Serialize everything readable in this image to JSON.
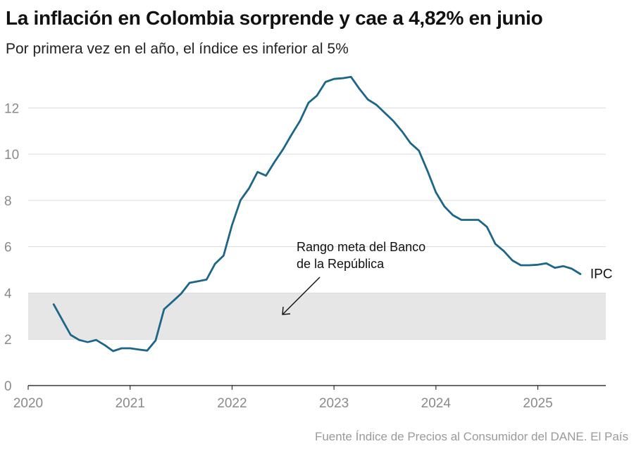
{
  "chart_data": {
    "type": "line",
    "title": "La inflación en Colombia sorprende y cae a 4,82% en junio",
    "subtitle": "Por primera vez en el año, el índice es inferior al 5%",
    "xlabel": "",
    "ylabel": "",
    "xlim": [
      2020.0,
      2025.6667
    ],
    "ylim": [
      0,
      13.5
    ],
    "y_ticks": [
      "0",
      "2",
      "4",
      "6",
      "8",
      "10",
      "12"
    ],
    "x_ticks": [
      "2020",
      "2021",
      "2022",
      "2023",
      "2024",
      "2025"
    ],
    "target_band": {
      "low": 2,
      "high": 4,
      "color": "#e6e6e6"
    },
    "annotation": {
      "lines": [
        "Rango meta del Banco",
        "de la República"
      ]
    },
    "series": [
      {
        "name": "IPC",
        "color": "#1c6689",
        "x": [
          2020.25,
          2020.333,
          2020.417,
          2020.5,
          2020.583,
          2020.667,
          2020.75,
          2020.833,
          2020.917,
          2021.0,
          2021.083,
          2021.167,
          2021.25,
          2021.333,
          2021.417,
          2021.5,
          2021.583,
          2021.667,
          2021.75,
          2021.833,
          2021.917,
          2022.0,
          2022.083,
          2022.167,
          2022.25,
          2022.333,
          2022.417,
          2022.5,
          2022.583,
          2022.667,
          2022.75,
          2022.833,
          2022.917,
          2023.0,
          2023.083,
          2023.167,
          2023.25,
          2023.333,
          2023.417,
          2023.5,
          2023.583,
          2023.667,
          2023.75,
          2023.833,
          2023.917,
          2024.0,
          2024.083,
          2024.167,
          2024.25,
          2024.333,
          2024.417,
          2024.5,
          2024.583,
          2024.667,
          2024.75,
          2024.833,
          2024.917,
          2025.0,
          2025.083,
          2025.167,
          2025.25,
          2025.333,
          2025.417
        ],
        "values": [
          3.51,
          2.85,
          2.19,
          1.97,
          1.88,
          1.97,
          1.75,
          1.49,
          1.61,
          1.61,
          1.56,
          1.51,
          1.95,
          3.3,
          3.63,
          3.97,
          4.44,
          4.51,
          4.58,
          5.26,
          5.62,
          6.94,
          8.01,
          8.53,
          9.23,
          9.07,
          9.67,
          10.21,
          10.84,
          11.44,
          12.22,
          12.53,
          13.12,
          13.25,
          13.28,
          13.34,
          12.82,
          12.36,
          12.13,
          11.78,
          11.43,
          10.99,
          10.48,
          10.15,
          9.28,
          8.35,
          7.74,
          7.36,
          7.16,
          7.16,
          7.16,
          6.86,
          6.12,
          5.81,
          5.41,
          5.2,
          5.2,
          5.22,
          5.28,
          5.09,
          5.16,
          5.05,
          4.82
        ]
      }
    ],
    "source": "Fuente Índice de Precios al Consumidor del DANE. El País"
  }
}
